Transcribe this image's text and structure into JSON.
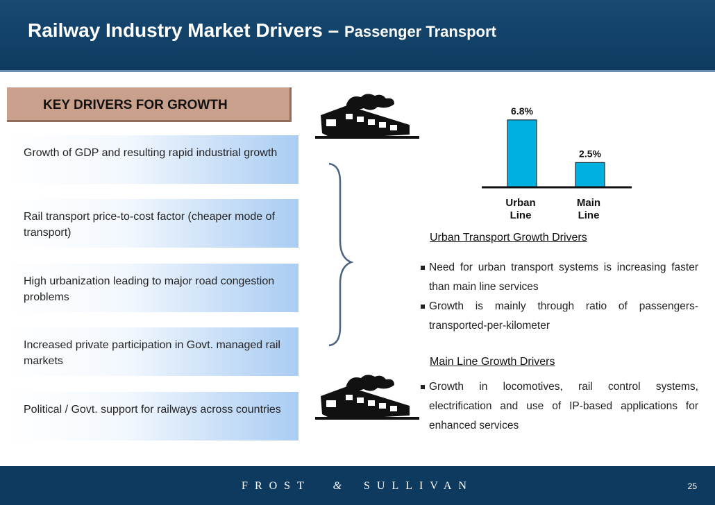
{
  "header": {
    "title_main": "Railway Industry Market Drivers",
    "title_sep": " – ",
    "title_sub": "Passenger Transport"
  },
  "key_drivers": {
    "heading": "KEY DRIVERS FOR GROWTH",
    "items": [
      "Growth of GDP and resulting rapid industrial growth",
      "Rail transport price-to-cost factor (cheaper mode of transport)",
      "High urbanization leading to major road congestion problems",
      "Increased private participation in Govt. managed rail markets",
      "Political / Govt. support for railways across countries"
    ]
  },
  "chart_data": {
    "type": "bar",
    "categories": [
      "Urban Line",
      "Main Line"
    ],
    "category_lines": [
      [
        "Urban",
        "Line"
      ],
      [
        "Main",
        "Line"
      ]
    ],
    "values": [
      6.8,
      2.5
    ],
    "value_labels": [
      "6.8%",
      "2.5%"
    ],
    "ylim": [
      0,
      7
    ],
    "color": "#00b0e0",
    "title": "",
    "xlabel": "",
    "ylabel": "",
    "grid": false
  },
  "urban": {
    "heading": "Urban Transport Growth Drivers",
    "bullets": [
      "Need for urban transport systems is increasing faster than main line services",
      "Growth is mainly through ratio of passengers-transported-per-kilometer"
    ]
  },
  "mainline": {
    "heading": "Main Line Growth Drivers",
    "bullets": [
      "Growth in locomotives, rail control systems, electrification and use of IP-based applications for enhanced services"
    ]
  },
  "footer": {
    "brand_left": "FROST",
    "brand_amp": "&",
    "brand_right": "SULLIVAN",
    "page_number": "25"
  },
  "colors": {
    "title_bar": "#0e3a5f",
    "key_header": "#c9a08c",
    "driver_gradient_end": "#a9ccf3",
    "bar": "#00b0e0"
  },
  "icons": [
    "train-clipart-icon",
    "brace-icon"
  ]
}
